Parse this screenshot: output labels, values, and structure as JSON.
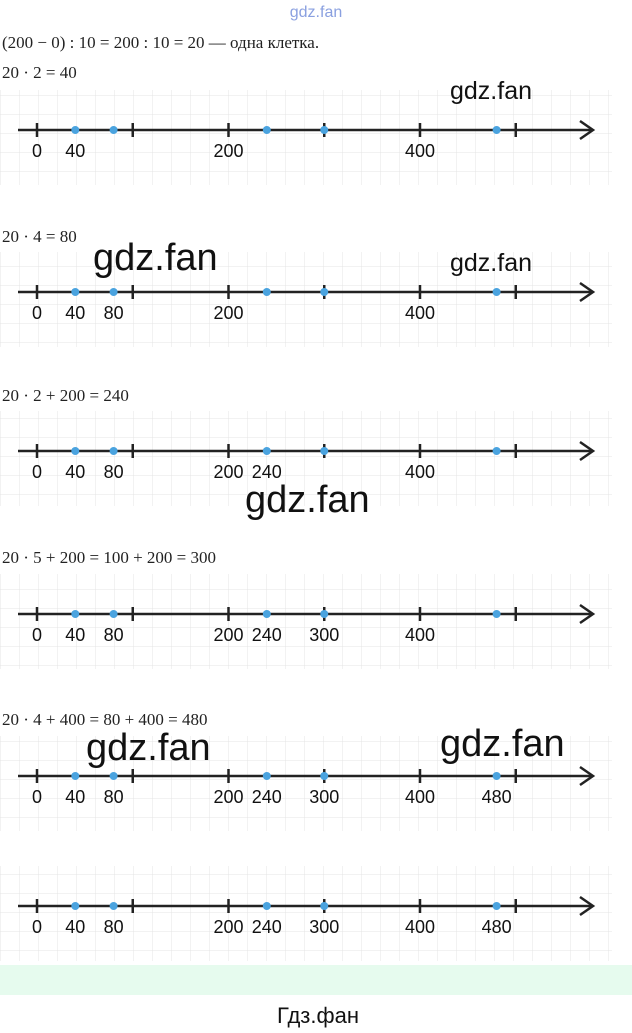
{
  "header_watermark": "gdz.fan",
  "intro": "(200 − 0) : 10 = 200 : 10 = 20 — одна клетка.",
  "blocks": [
    {
      "equation": "20 · 2 = 40",
      "labels": [
        0,
        40,
        200,
        400
      ]
    },
    {
      "equation": "20 · 4 = 80",
      "labels": [
        0,
        40,
        80,
        200,
        400
      ]
    },
    {
      "equation": "20 · 2 + 200 = 240",
      "labels": [
        0,
        40,
        80,
        200,
        240,
        400
      ]
    },
    {
      "equation": "20 · 5 + 200 = 100 + 200 = 300",
      "labels": [
        0,
        40,
        80,
        200,
        240,
        300,
        400
      ]
    },
    {
      "equation": "20 · 4 + 400 = 80 + 400 = 480",
      "labels": [
        0,
        40,
        80,
        200,
        240,
        300,
        400,
        480
      ]
    },
    {
      "labels": [
        0,
        40,
        80,
        200,
        240,
        300,
        400,
        480
      ]
    }
  ],
  "points": [
    40,
    80,
    240,
    300,
    480
  ],
  "ticks": [
    0,
    100,
    200,
    300,
    400,
    500
  ],
  "watermarks": [
    "gdz.fan",
    "gdz.fan",
    "gdz.fan",
    "gdz.fan",
    "gdz.fan",
    "gdz.fan"
  ],
  "footer": "Гдз.фан"
}
